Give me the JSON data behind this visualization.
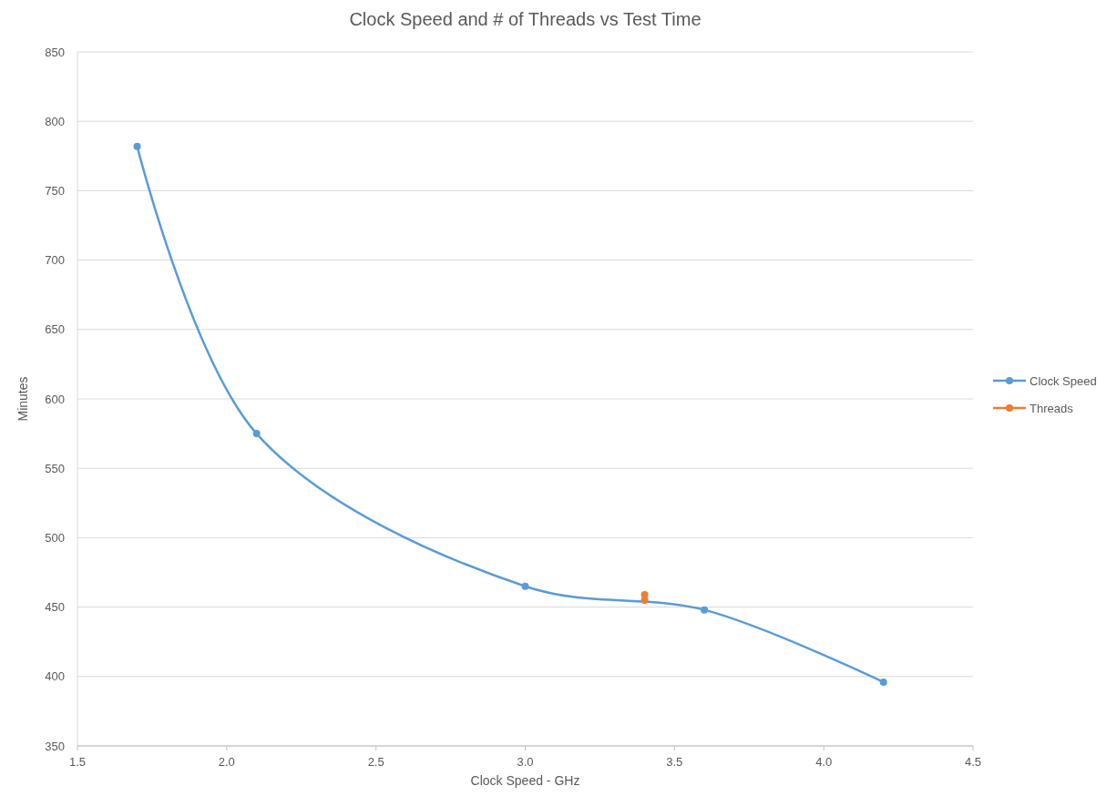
{
  "chart_data": {
    "type": "line",
    "title": "Clock Speed and # of Threads vs Test Time",
    "xlabel": "Clock Speed - GHz",
    "ylabel": "Minutes",
    "series": [
      {
        "name": "Clock Speed",
        "color": "#5b9bd5",
        "x": [
          1.7,
          2.1,
          3.0,
          3.4,
          3.6,
          4.2
        ],
        "values": [
          782,
          575,
          465,
          null,
          448,
          396
        ]
      },
      {
        "name": "Threads",
        "type": "scatter",
        "color": "#ed7d31",
        "x": [
          3.4,
          3.4
        ],
        "values": [
          459,
          455
        ]
      }
    ],
    "xlim": [
      1.5,
      4.5
    ],
    "xticks": [
      {
        "value": 1.5,
        "label": "1.5"
      },
      {
        "value": 2,
        "label": "2.0"
      },
      {
        "value": 2.5,
        "label": "2.5"
      },
      {
        "value": 3,
        "label": "3.0"
      },
      {
        "value": 3.5,
        "label": "3.5"
      },
      {
        "value": 4,
        "label": "4.0"
      },
      {
        "value": 4.5,
        "label": "4.5"
      }
    ],
    "ylim": [
      350,
      850
    ],
    "yticks": [
      350,
      400,
      450,
      500,
      550,
      600,
      650,
      700,
      750,
      800,
      850
    ],
    "grid": "y",
    "legend": "right",
    "marker": "circle",
    "line_style": "solid"
  }
}
